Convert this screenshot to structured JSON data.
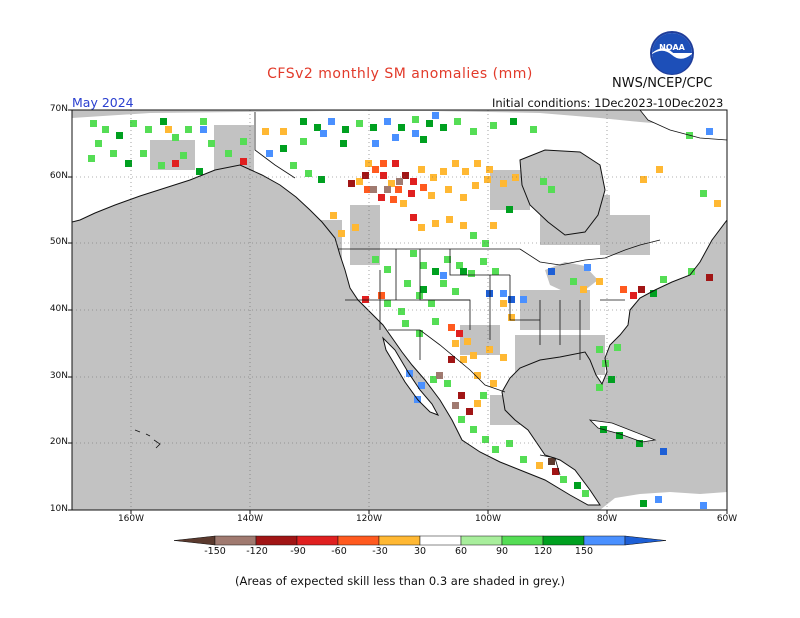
{
  "header": {
    "title": "CFSv2 monthly SM anomalies (mm)",
    "agency": "NWS/NCEP/CPC",
    "valid_month": "May 2024",
    "initial_conditions": "Initial conditions: 1Dec2023-10Dec2023",
    "logo_text": "NOAA"
  },
  "map": {
    "lat_labels": [
      "70N",
      "60N",
      "50N",
      "40N",
      "30N",
      "20N",
      "10N"
    ],
    "lon_labels": [
      "160W",
      "140W",
      "120W",
      "100W",
      "80W",
      "60W"
    ],
    "extent": {
      "lon_min": -170,
      "lon_max": -60,
      "lat_min": 10,
      "lat_max": 70
    }
  },
  "colorbar": {
    "ticks": [
      "-150",
      "-120",
      "-90",
      "-60",
      "-30",
      "30",
      "60",
      "90",
      "120",
      "150"
    ],
    "colors": [
      "#5b3a2e",
      "#a07a70",
      "#a11515",
      "#e02020",
      "#ff5a1f",
      "#ffb833",
      "#ffffff",
      "#a8ee9c",
      "#55dd55",
      "#00a020",
      "#4a90ff",
      "#1d5fd6"
    ],
    "skill_mask_color": "#c2c2c2"
  },
  "footer": {
    "note": "(Areas of expected skill less than 0.3 are shaded in grey.)"
  }
}
